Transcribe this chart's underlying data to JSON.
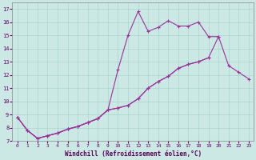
{
  "xlabel": "Windchill (Refroidissement éolien,°C)",
  "bg_color": "#cce8e4",
  "grid_color": "#aad4d0",
  "line_color": "#993399",
  "x": [
    0,
    1,
    2,
    3,
    4,
    5,
    6,
    7,
    8,
    9,
    10,
    11,
    12,
    13,
    14,
    15,
    16,
    17,
    18,
    19,
    20,
    21,
    22,
    23
  ],
  "series_top": [
    8.8,
    7.8,
    7.2,
    7.4,
    7.6,
    7.9,
    8.1,
    8.4,
    8.7,
    9.35,
    12.4,
    15.0,
    16.8,
    15.3,
    15.6,
    16.1,
    15.7,
    15.7,
    16.0,
    14.9,
    14.9,
    null,
    null,
    null
  ],
  "series_mid": [
    8.8,
    7.8,
    7.2,
    7.4,
    7.6,
    7.9,
    8.1,
    8.4,
    8.7,
    9.35,
    9.5,
    9.7,
    10.2,
    11.0,
    11.5,
    11.9,
    12.5,
    12.8,
    13.0,
    13.3,
    14.9,
    12.7,
    12.2,
    11.7
  ],
  "series_bot": [
    8.8,
    7.8,
    7.2,
    7.4,
    7.6,
    7.9,
    8.1,
    8.4,
    8.7,
    9.35,
    9.5,
    9.7,
    10.2,
    11.0,
    11.5,
    11.9,
    12.5,
    12.8,
    13.0,
    13.3,
    null,
    null,
    null,
    null
  ],
  "ylim": [
    7.0,
    17.5
  ],
  "xlim": [
    -0.5,
    23.5
  ],
  "yticks": [
    7,
    8,
    9,
    10,
    11,
    12,
    13,
    14,
    15,
    16,
    17
  ],
  "xticks": [
    0,
    1,
    2,
    3,
    4,
    5,
    6,
    7,
    8,
    9,
    10,
    11,
    12,
    13,
    14,
    15,
    16,
    17,
    18,
    19,
    20,
    21,
    22,
    23
  ]
}
